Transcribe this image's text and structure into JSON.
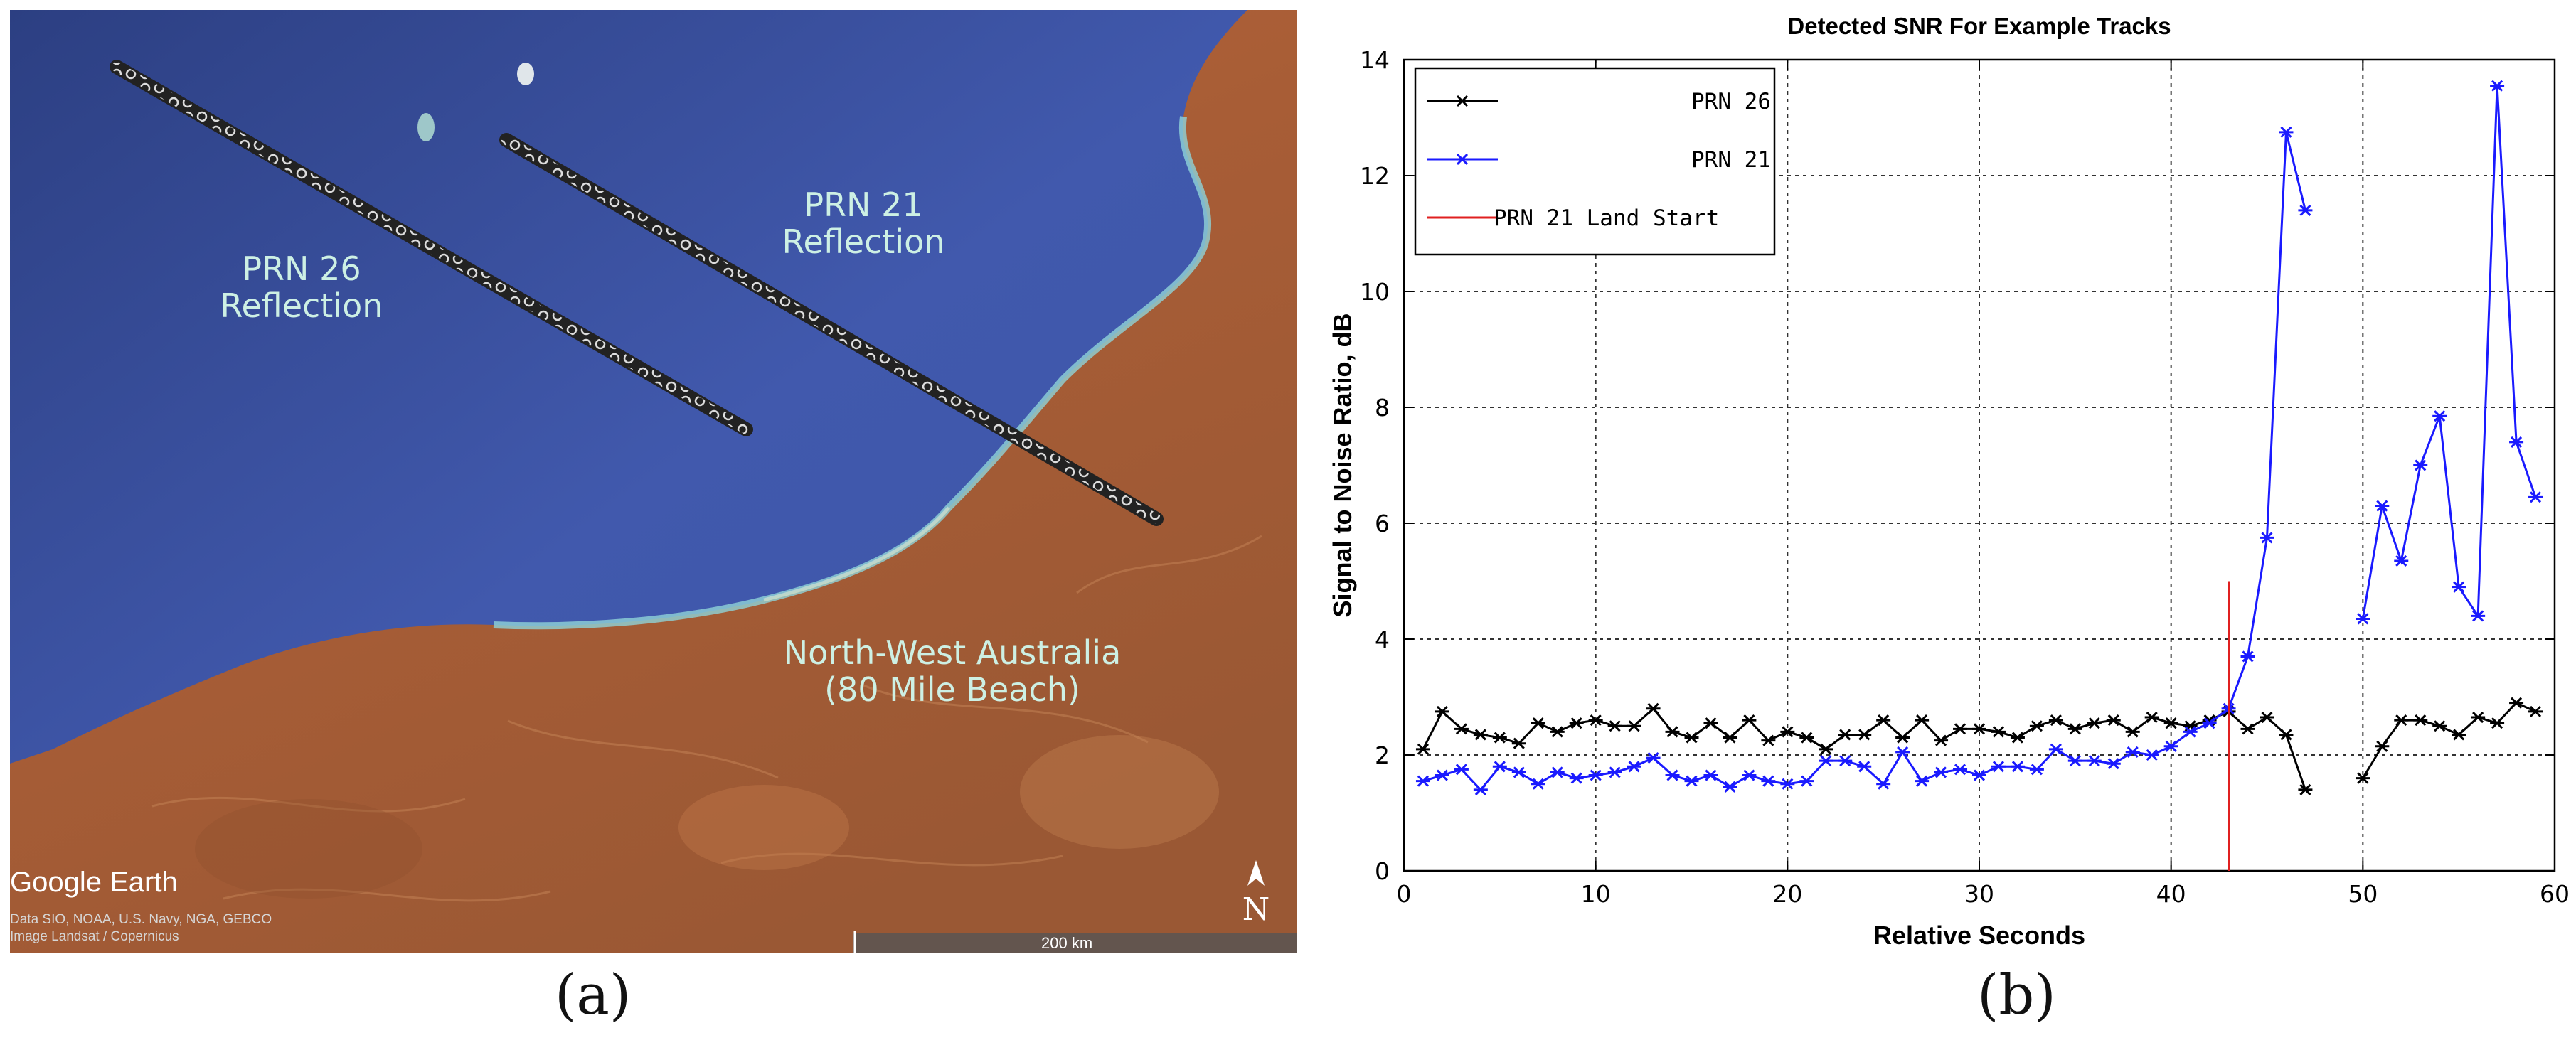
{
  "map": {
    "labels": {
      "prn26": [
        "PRN 26",
        "Reflection"
      ],
      "prn21": [
        "PRN 21",
        "Reflection"
      ],
      "region": [
        "North-West Australia",
        "(80 Mile Beach)"
      ]
    },
    "credit_logo": "Google Earth",
    "attribution_lines": [
      "Data SIO, NOAA, U.S. Navy, NGA, GEBCO",
      "Image Landsat / Copernicus"
    ],
    "scale_label": "200 km",
    "compass_letter": "N",
    "colors": {
      "sea": "#3f57a8",
      "land": "#b5653a",
      "coast": "#8fd3d8",
      "label": "#cdf0e4"
    }
  },
  "chart_data": {
    "type": "line",
    "title": "Detected SNR For Example Tracks",
    "xlabel": "Relative Seconds",
    "ylabel": "Signal to Noise Ratio, dB",
    "xlim": [
      0,
      60
    ],
    "ylim": [
      0,
      14
    ],
    "xticks": [
      0,
      10,
      20,
      30,
      40,
      50,
      60
    ],
    "yticks": [
      0,
      2,
      4,
      6,
      8,
      10,
      12,
      14
    ],
    "grid": true,
    "legend_position": "top-left",
    "series": [
      {
        "name": "PRN 26",
        "color": "#000000",
        "marker": "asterisk",
        "segments": [
          {
            "x": [
              1,
              2,
              3,
              4,
              5,
              6,
              7,
              8,
              9,
              10,
              11,
              12,
              13,
              14,
              15,
              16,
              17,
              18,
              19,
              20,
              21,
              22,
              23,
              24,
              25,
              26,
              27,
              28,
              29,
              30,
              31,
              32,
              33,
              34,
              35,
              36,
              37,
              38,
              39,
              40,
              41,
              42,
              43,
              44,
              45,
              46,
              47
            ],
            "y": [
              2.1,
              2.75,
              2.45,
              2.35,
              2.3,
              2.2,
              2.55,
              2.4,
              2.55,
              2.6,
              2.5,
              2.5,
              2.8,
              2.4,
              2.3,
              2.55,
              2.3,
              2.6,
              2.25,
              2.4,
              2.3,
              2.1,
              2.35,
              2.35,
              2.6,
              2.3,
              2.6,
              2.25,
              2.45,
              2.45,
              2.4,
              2.3,
              2.5,
              2.6,
              2.45,
              2.55,
              2.6,
              2.4,
              2.65,
              2.55,
              2.5,
              2.6,
              2.75,
              2.45,
              2.65,
              2.35,
              1.4
            ]
          },
          {
            "x": [
              50,
              51,
              52,
              53,
              54,
              55,
              56,
              57,
              58,
              59
            ],
            "y": [
              1.6,
              2.15,
              2.6,
              2.6,
              2.5,
              2.35,
              2.65,
              2.55,
              2.9,
              2.75
            ]
          }
        ]
      },
      {
        "name": "PRN 21",
        "color": "#1a1aff",
        "marker": "asterisk",
        "segments": [
          {
            "x": [
              1,
              2,
              3,
              4,
              5,
              6,
              7,
              8,
              9,
              10,
              11,
              12,
              13,
              14,
              15,
              16,
              17,
              18,
              19,
              20,
              21,
              22,
              23,
              24,
              25,
              26,
              27,
              28,
              29,
              30,
              31,
              32,
              33,
              34,
              35,
              36,
              37,
              38,
              39,
              40,
              41,
              42,
              43,
              44,
              45,
              46,
              47
            ],
            "y": [
              1.55,
              1.65,
              1.75,
              1.4,
              1.8,
              1.7,
              1.5,
              1.7,
              1.6,
              1.65,
              1.7,
              1.8,
              1.95,
              1.65,
              1.55,
              1.65,
              1.45,
              1.65,
              1.55,
              1.5,
              1.55,
              1.9,
              1.9,
              1.8,
              1.5,
              2.05,
              1.55,
              1.7,
              1.75,
              1.65,
              1.8,
              1.8,
              1.75,
              2.1,
              1.9,
              1.9,
              1.85,
              2.05,
              2.0,
              2.15,
              2.4,
              2.55,
              2.8,
              3.7,
              5.75,
              12.75,
              11.4
            ]
          },
          {
            "x": [
              50,
              51,
              52,
              53,
              54,
              55,
              56,
              57,
              58,
              59
            ],
            "y": [
              4.35,
              6.3,
              5.35,
              7.0,
              7.85,
              4.9,
              4.4,
              13.55,
              7.4,
              6.45
            ]
          }
        ]
      },
      {
        "name": "PRN 21 Land Start",
        "color": "#e02020",
        "marker": "none",
        "segments": [
          {
            "x": [
              43,
              43
            ],
            "y": [
              0,
              5
            ]
          }
        ]
      }
    ]
  },
  "panel_labels": {
    "a": "(a)",
    "b": "(b)"
  }
}
